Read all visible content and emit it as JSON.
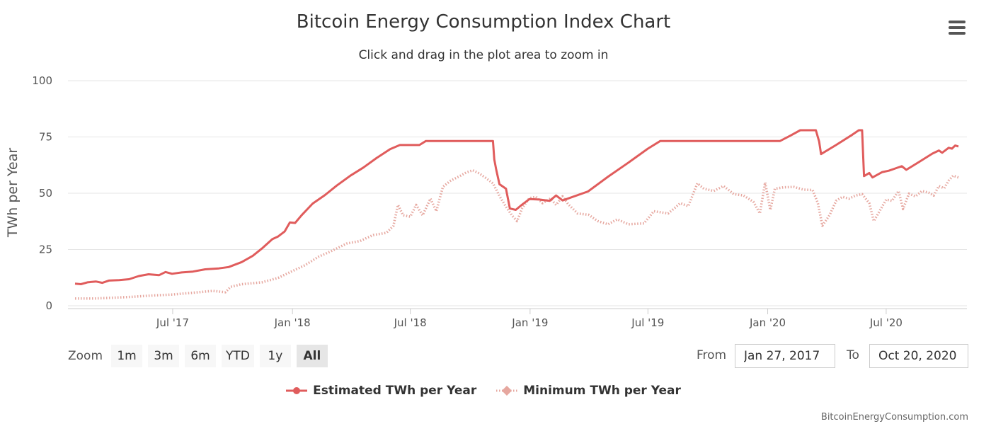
{
  "title": "Bitcoin Energy Consumption Index Chart",
  "subtitle": "Click and drag in the plot area to zoom in",
  "menu_icon": "hamburger-menu-icon",
  "zoom": {
    "label": "Zoom",
    "buttons": [
      "1m",
      "3m",
      "6m",
      "YTD",
      "1y",
      "All"
    ],
    "selected": "All"
  },
  "range": {
    "from_label": "From",
    "from_value": "Jan 27, 2017",
    "to_label": "To",
    "to_value": "Oct 20, 2020"
  },
  "credit": "BitcoinEnergyConsumption.com",
  "colors": {
    "estimated": "#e05c5c",
    "minimum": "#e6a79f",
    "grid": "#e6e6e6"
  },
  "chart_data": {
    "type": "line",
    "title": "Bitcoin Energy Consumption Index Chart",
    "subtitle": "Click and drag in the plot area to zoom in",
    "xlabel": "",
    "ylabel": "TWh per Year",
    "ylim": [
      0,
      100
    ],
    "yticks": [
      "0",
      "25",
      "50",
      "75",
      "100"
    ],
    "xlim": [
      "2017-02-01",
      "2020-10-20"
    ],
    "xticks": [
      {
        "label": "Jul '17",
        "date": "2017-07-01"
      },
      {
        "label": "Jan '18",
        "date": "2018-01-01"
      },
      {
        "label": "Jul '18",
        "date": "2018-07-01"
      },
      {
        "label": "Jan '19",
        "date": "2019-01-01"
      },
      {
        "label": "Jul '19",
        "date": "2019-07-01"
      },
      {
        "label": "Jan '20",
        "date": "2020-01-01"
      },
      {
        "label": "Jul '20",
        "date": "2020-07-01"
      }
    ],
    "grid": true,
    "legend_position": "bottom-center",
    "series": [
      {
        "name": "Estimated TWh per Year",
        "color": "#e05c5c",
        "style": "solid",
        "points": [
          [
            "2017-02-01",
            9.8
          ],
          [
            "2017-02-10",
            9.6
          ],
          [
            "2017-02-20",
            10.4
          ],
          [
            "2017-03-05",
            10.8
          ],
          [
            "2017-03-15",
            10.2
          ],
          [
            "2017-03-25",
            11.2
          ],
          [
            "2017-04-10",
            11.4
          ],
          [
            "2017-04-25",
            11.8
          ],
          [
            "2017-05-10",
            13.2
          ],
          [
            "2017-05-25",
            14.0
          ],
          [
            "2017-06-10",
            13.6
          ],
          [
            "2017-06-20",
            15.0
          ],
          [
            "2017-06-30",
            14.2
          ],
          [
            "2017-07-15",
            14.8
          ],
          [
            "2017-08-01",
            15.2
          ],
          [
            "2017-08-20",
            16.2
          ],
          [
            "2017-09-10",
            16.6
          ],
          [
            "2017-09-25",
            17.2
          ],
          [
            "2017-10-15",
            19.4
          ],
          [
            "2017-11-01",
            22.2
          ],
          [
            "2017-11-15",
            25.4
          ],
          [
            "2017-12-01",
            29.6
          ],
          [
            "2017-12-10",
            30.8
          ],
          [
            "2017-12-20",
            33.0
          ],
          [
            "2017-12-28",
            37.0
          ],
          [
            "2018-01-05",
            36.8
          ],
          [
            "2018-01-15",
            40.2
          ],
          [
            "2018-02-01",
            45.4
          ],
          [
            "2018-02-20",
            49.2
          ],
          [
            "2018-03-10",
            53.4
          ],
          [
            "2018-03-31",
            57.8
          ],
          [
            "2018-04-20",
            61.4
          ],
          [
            "2018-05-10",
            65.6
          ],
          [
            "2018-05-31",
            69.6
          ],
          [
            "2018-06-15",
            71.4
          ],
          [
            "2018-07-01",
            71.4
          ],
          [
            "2018-07-15",
            71.4
          ],
          [
            "2018-07-25",
            73.2
          ],
          [
            "2018-08-31",
            73.2
          ],
          [
            "2018-10-15",
            73.2
          ],
          [
            "2018-11-05",
            73.2
          ],
          [
            "2018-11-07",
            65.0
          ],
          [
            "2018-11-10",
            60.5
          ],
          [
            "2018-11-15",
            54.0
          ],
          [
            "2018-11-25",
            52.0
          ],
          [
            "2018-12-01",
            43.2
          ],
          [
            "2018-12-10",
            42.6
          ],
          [
            "2018-12-20",
            45.0
          ],
          [
            "2018-12-31",
            47.4
          ],
          [
            "2019-01-15",
            47.2
          ],
          [
            "2019-01-31",
            46.6
          ],
          [
            "2019-02-10",
            49.0
          ],
          [
            "2019-02-20",
            46.8
          ],
          [
            "2019-03-31",
            50.8
          ],
          [
            "2019-05-01",
            57.4
          ],
          [
            "2019-06-01",
            63.6
          ],
          [
            "2019-07-01",
            69.8
          ],
          [
            "2019-07-20",
            73.2
          ],
          [
            "2019-09-01",
            73.2
          ],
          [
            "2019-11-01",
            73.2
          ],
          [
            "2019-12-31",
            73.2
          ],
          [
            "2020-01-20",
            73.2
          ],
          [
            "2020-02-05",
            75.6
          ],
          [
            "2020-02-20",
            78.0
          ],
          [
            "2020-03-15",
            78.0
          ],
          [
            "2020-03-20",
            73.0
          ],
          [
            "2020-03-23",
            67.4
          ],
          [
            "2020-04-15",
            71.4
          ],
          [
            "2020-05-10",
            76.0
          ],
          [
            "2020-05-20",
            78.0
          ],
          [
            "2020-05-25",
            78.0
          ],
          [
            "2020-05-28",
            57.6
          ],
          [
            "2020-06-05",
            59.0
          ],
          [
            "2020-06-10",
            57.0
          ],
          [
            "2020-06-25",
            59.4
          ],
          [
            "2020-07-05",
            60.0
          ],
          [
            "2020-07-15",
            61.0
          ],
          [
            "2020-07-25",
            62.0
          ],
          [
            "2020-08-01",
            60.4
          ],
          [
            "2020-08-20",
            63.8
          ],
          [
            "2020-09-10",
            67.6
          ],
          [
            "2020-09-20",
            69.0
          ],
          [
            "2020-09-25",
            68.0
          ],
          [
            "2020-10-05",
            70.2
          ],
          [
            "2020-10-10",
            69.8
          ],
          [
            "2020-10-15",
            71.2
          ],
          [
            "2020-10-20",
            70.8
          ]
        ]
      },
      {
        "name": "Minimum TWh per Year",
        "color": "#e6a79f",
        "style": "dotted",
        "points": [
          [
            "2017-02-01",
            3.2
          ],
          [
            "2017-03-01",
            3.2
          ],
          [
            "2017-04-01",
            3.6
          ],
          [
            "2017-05-01",
            4.0
          ],
          [
            "2017-06-01",
            4.6
          ],
          [
            "2017-07-01",
            5.0
          ],
          [
            "2017-08-01",
            5.8
          ],
          [
            "2017-09-01",
            6.6
          ],
          [
            "2017-09-20",
            6.0
          ],
          [
            "2017-09-28",
            8.4
          ],
          [
            "2017-10-15",
            9.6
          ],
          [
            "2017-11-15",
            10.4
          ],
          [
            "2017-12-10",
            12.4
          ],
          [
            "2018-01-01",
            15.4
          ],
          [
            "2018-01-20",
            18.0
          ],
          [
            "2018-02-10",
            21.8
          ],
          [
            "2018-03-01",
            24.2
          ],
          [
            "2018-03-25",
            27.6
          ],
          [
            "2018-04-15",
            28.8
          ],
          [
            "2018-05-05",
            31.4
          ],
          [
            "2018-05-25",
            32.4
          ],
          [
            "2018-06-05",
            35.4
          ],
          [
            "2018-06-12",
            44.8
          ],
          [
            "2018-06-20",
            40.2
          ],
          [
            "2018-07-01",
            39.6
          ],
          [
            "2018-07-10",
            44.8
          ],
          [
            "2018-07-20",
            40.2
          ],
          [
            "2018-08-01",
            47.6
          ],
          [
            "2018-08-10",
            42.0
          ],
          [
            "2018-08-20",
            52.8
          ],
          [
            "2018-09-01",
            55.6
          ],
          [
            "2018-09-15",
            57.6
          ],
          [
            "2018-09-25",
            59.2
          ],
          [
            "2018-10-05",
            60.2
          ],
          [
            "2018-10-15",
            58.8
          ],
          [
            "2018-10-25",
            56.8
          ],
          [
            "2018-11-05",
            54.4
          ],
          [
            "2018-11-15",
            48.8
          ],
          [
            "2018-11-25",
            44.0
          ],
          [
            "2018-12-05",
            39.8
          ],
          [
            "2018-12-12",
            37.6
          ],
          [
            "2018-12-20",
            43.4
          ],
          [
            "2018-12-31",
            47.8
          ],
          [
            "2019-01-10",
            48.4
          ],
          [
            "2019-01-20",
            45.6
          ],
          [
            "2019-02-01",
            47.6
          ],
          [
            "2019-02-10",
            44.8
          ],
          [
            "2019-02-20",
            48.6
          ],
          [
            "2019-03-01",
            45.0
          ],
          [
            "2019-03-15",
            41.0
          ],
          [
            "2019-04-01",
            40.4
          ],
          [
            "2019-04-15",
            37.6
          ],
          [
            "2019-05-01",
            36.2
          ],
          [
            "2019-05-15",
            38.4
          ],
          [
            "2019-06-01",
            36.2
          ],
          [
            "2019-06-25",
            36.6
          ],
          [
            "2019-07-10",
            42.0
          ],
          [
            "2019-08-01",
            41.0
          ],
          [
            "2019-08-20",
            45.6
          ],
          [
            "2019-09-01",
            44.2
          ],
          [
            "2019-09-15",
            54.4
          ],
          [
            "2019-09-25",
            52.0
          ],
          [
            "2019-10-10",
            51.0
          ],
          [
            "2019-10-25",
            53.2
          ],
          [
            "2019-11-10",
            49.6
          ],
          [
            "2019-11-25",
            49.0
          ],
          [
            "2019-12-10",
            46.2
          ],
          [
            "2019-12-20",
            41.0
          ],
          [
            "2019-12-28",
            54.8
          ],
          [
            "2020-01-05",
            42.6
          ],
          [
            "2020-01-12",
            52.0
          ],
          [
            "2020-01-25",
            52.6
          ],
          [
            "2020-02-10",
            52.8
          ],
          [
            "2020-02-25",
            51.6
          ],
          [
            "2020-03-10",
            51.4
          ],
          [
            "2020-03-18",
            45.6
          ],
          [
            "2020-03-25",
            35.6
          ],
          [
            "2020-04-05",
            40.2
          ],
          [
            "2020-04-15",
            46.6
          ],
          [
            "2020-04-25",
            48.4
          ],
          [
            "2020-05-05",
            47.6
          ],
          [
            "2020-05-15",
            49.0
          ],
          [
            "2020-05-25",
            49.6
          ],
          [
            "2020-06-05",
            45.6
          ],
          [
            "2020-06-12",
            37.6
          ],
          [
            "2020-06-22",
            42.6
          ],
          [
            "2020-07-01",
            47.2
          ],
          [
            "2020-07-10",
            46.6
          ],
          [
            "2020-07-20",
            51.0
          ],
          [
            "2020-07-27",
            43.0
          ],
          [
            "2020-08-05",
            49.8
          ],
          [
            "2020-08-15",
            48.6
          ],
          [
            "2020-08-25",
            51.0
          ],
          [
            "2020-09-05",
            50.2
          ],
          [
            "2020-09-12",
            49.0
          ],
          [
            "2020-09-20",
            53.2
          ],
          [
            "2020-09-28",
            52.2
          ],
          [
            "2020-10-05",
            55.6
          ],
          [
            "2020-10-12",
            57.8
          ],
          [
            "2020-10-20",
            57.0
          ]
        ]
      }
    ]
  }
}
